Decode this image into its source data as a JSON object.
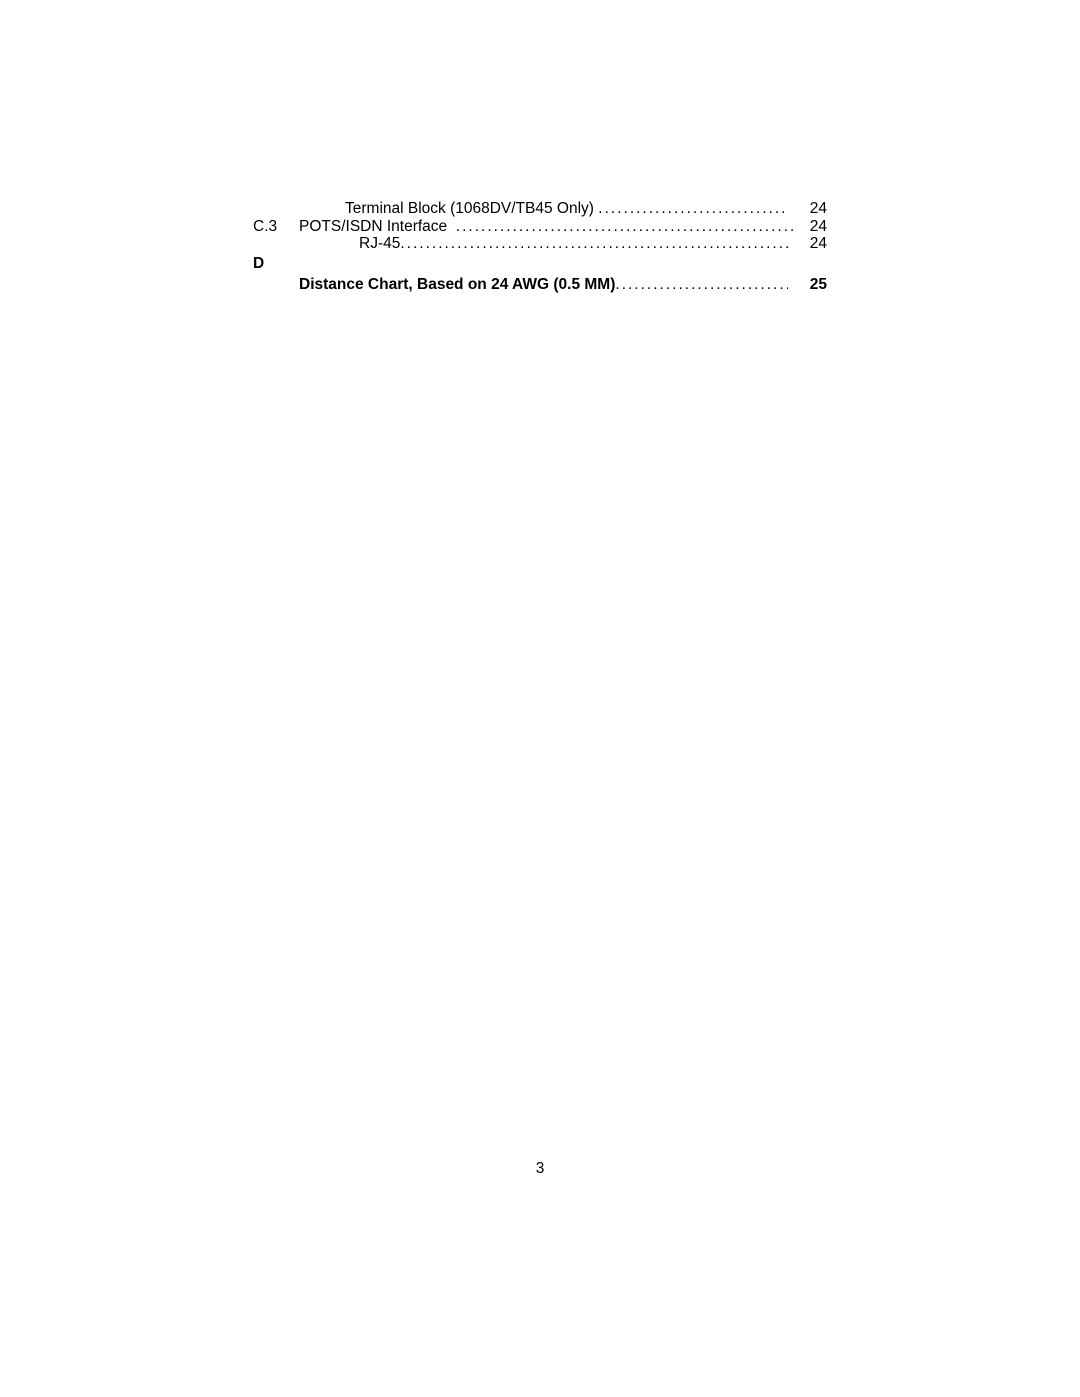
{
  "toc": {
    "entries": [
      {
        "secnum": "",
        "indent": "sub",
        "label": "Terminal Block (1068DV/TB45 Only)",
        "page": "24",
        "bold": false
      },
      {
        "secnum": "C.3",
        "indent": "none",
        "label": "POTS/ISDN Interface",
        "page": "24",
        "bold": false
      },
      {
        "secnum": "",
        "indent": "sub2",
        "label": "RJ-45",
        "page": "24",
        "bold": false
      }
    ],
    "appendix_letter": "D",
    "section_title": {
      "label": "Distance Chart, Based on 24 AWG (0.5 MM)",
      "page": "25"
    }
  },
  "footer_page_number": "3"
}
